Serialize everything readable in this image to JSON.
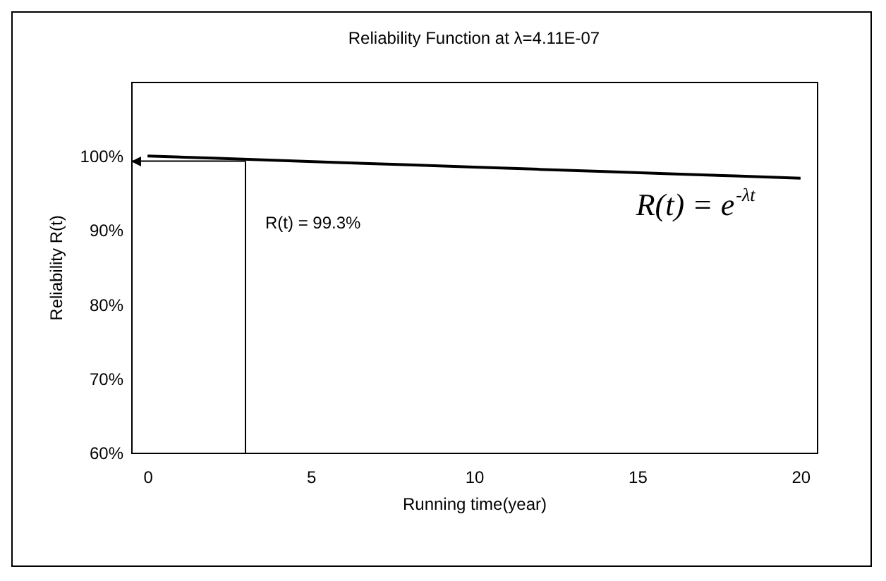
{
  "chart_data": {
    "type": "line",
    "title": "Reliability Function at λ=4.11E-07",
    "xlabel": "Running time(year)",
    "ylabel": "Reliability  R(t)",
    "x": [
      0,
      2,
      4,
      6,
      8,
      10,
      12,
      14,
      16,
      18,
      20
    ],
    "series": [
      {
        "color": "#000000",
        "values": [
          100,
          99.7,
          99.4,
          99.1,
          98.8,
          98.5,
          98.2,
          97.9,
          97.6,
          97.3,
          97.0
        ]
      }
    ],
    "xlim": [
      -0.5,
      20.5
    ],
    "xticks": [
      0,
      5,
      10,
      15,
      20
    ],
    "ylim": [
      60,
      110
    ],
    "yticks": [
      {
        "value": 60,
        "label": "60%"
      },
      {
        "value": 70,
        "label": "70%"
      },
      {
        "value": 80,
        "label": "80%"
      },
      {
        "value": 90,
        "label": "90%"
      },
      {
        "value": 100,
        "label": "100%"
      }
    ],
    "annotations": [
      "R(t) = 99.3%",
      "R(t) = e$^{-λt}$"
    ],
    "ref_lines": [
      {
        "axis": "x",
        "value": 3
      },
      {
        "axis": "y",
        "value": 99.3
      }
    ],
    "grid": false,
    "marker": "none",
    "line_style": "solid"
  }
}
